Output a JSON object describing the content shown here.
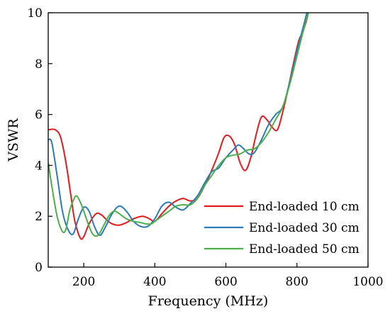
{
  "chart_data": {
    "type": "line",
    "title": "",
    "xlabel": "Frequency (MHz)",
    "ylabel": "VSWR",
    "xlim": [
      100,
      1000
    ],
    "ylim": [
      0,
      10
    ],
    "x_ticks": [
      200,
      400,
      600,
      800,
      1000
    ],
    "y_ticks": [
      0,
      2,
      4,
      6,
      8,
      10
    ],
    "grid": false,
    "legend_position": "lower-right",
    "series": [
      {
        "name": "End-loaded 10 cm",
        "color": "#e41a1c",
        "x": [
          100,
          120,
          135,
          150,
          165,
          175,
          190,
          200,
          215,
          235,
          250,
          265,
          280,
          300,
          320,
          340,
          365,
          385,
          400,
          420,
          440,
          460,
          480,
          500,
          520,
          540,
          560,
          580,
          595,
          610,
          625,
          640,
          655,
          670,
          685,
          700,
          715,
          730,
          745,
          760,
          775,
          790,
          805,
          815,
          825,
          832
        ],
        "y": [
          5.4,
          5.4,
          5.1,
          4.1,
          2.7,
          1.8,
          1.15,
          1.2,
          1.7,
          2.1,
          2.05,
          1.85,
          1.7,
          1.65,
          1.75,
          1.9,
          2.0,
          1.9,
          1.8,
          2.1,
          2.4,
          2.6,
          2.7,
          2.6,
          2.7,
          3.2,
          3.8,
          4.5,
          5.1,
          5.15,
          4.8,
          4.1,
          3.8,
          4.3,
          5.2,
          5.9,
          5.8,
          5.5,
          5.4,
          6.1,
          7.0,
          8.0,
          8.9,
          9.2,
          9.6,
          10.0
        ]
      },
      {
        "name": "End-loaded 30 cm",
        "color": "#2b7bb9",
        "x": [
          100,
          110,
          125,
          140,
          155,
          170,
          185,
          200,
          215,
          230,
          245,
          260,
          280,
          300,
          320,
          340,
          360,
          380,
          400,
          420,
          440,
          460,
          480,
          500,
          520,
          540,
          560,
          580,
          600,
          620,
          635,
          650,
          665,
          680,
          700,
          720,
          740,
          760,
          780,
          800,
          815,
          828
        ],
        "y": [
          5.0,
          4.9,
          3.6,
          2.2,
          1.5,
          1.3,
          1.9,
          2.35,
          2.2,
          1.6,
          1.25,
          1.55,
          2.1,
          2.4,
          2.2,
          1.8,
          1.6,
          1.6,
          1.9,
          2.4,
          2.55,
          2.35,
          2.25,
          2.5,
          2.8,
          3.3,
          3.75,
          3.9,
          4.3,
          4.6,
          4.8,
          4.65,
          4.45,
          4.5,
          5.0,
          5.6,
          6.0,
          6.3,
          7.3,
          8.5,
          9.3,
          10.0
        ]
      },
      {
        "name": "End-loaded 50 cm",
        "color": "#4daf4a",
        "x": [
          100,
          110,
          125,
          140,
          150,
          160,
          170,
          180,
          195,
          210,
          225,
          240,
          255,
          270,
          285,
          300,
          320,
          340,
          360,
          375,
          390,
          405,
          420,
          440,
          460,
          480,
          500,
          520,
          540,
          560,
          580,
          600,
          620,
          640,
          660,
          680,
          700,
          720,
          740,
          760,
          780,
          800,
          818,
          832
        ],
        "y": [
          4.1,
          3.2,
          2.0,
          1.4,
          1.5,
          2.2,
          2.6,
          2.8,
          2.4,
          1.8,
          1.3,
          1.25,
          1.6,
          2.0,
          2.2,
          2.1,
          1.9,
          1.8,
          1.75,
          1.7,
          1.7,
          1.85,
          2.0,
          2.2,
          2.4,
          2.45,
          2.45,
          2.7,
          3.2,
          3.6,
          4.0,
          4.3,
          4.4,
          4.45,
          4.6,
          4.65,
          4.9,
          5.3,
          5.8,
          6.3,
          7.2,
          8.3,
          9.3,
          10.0
        ]
      }
    ]
  }
}
